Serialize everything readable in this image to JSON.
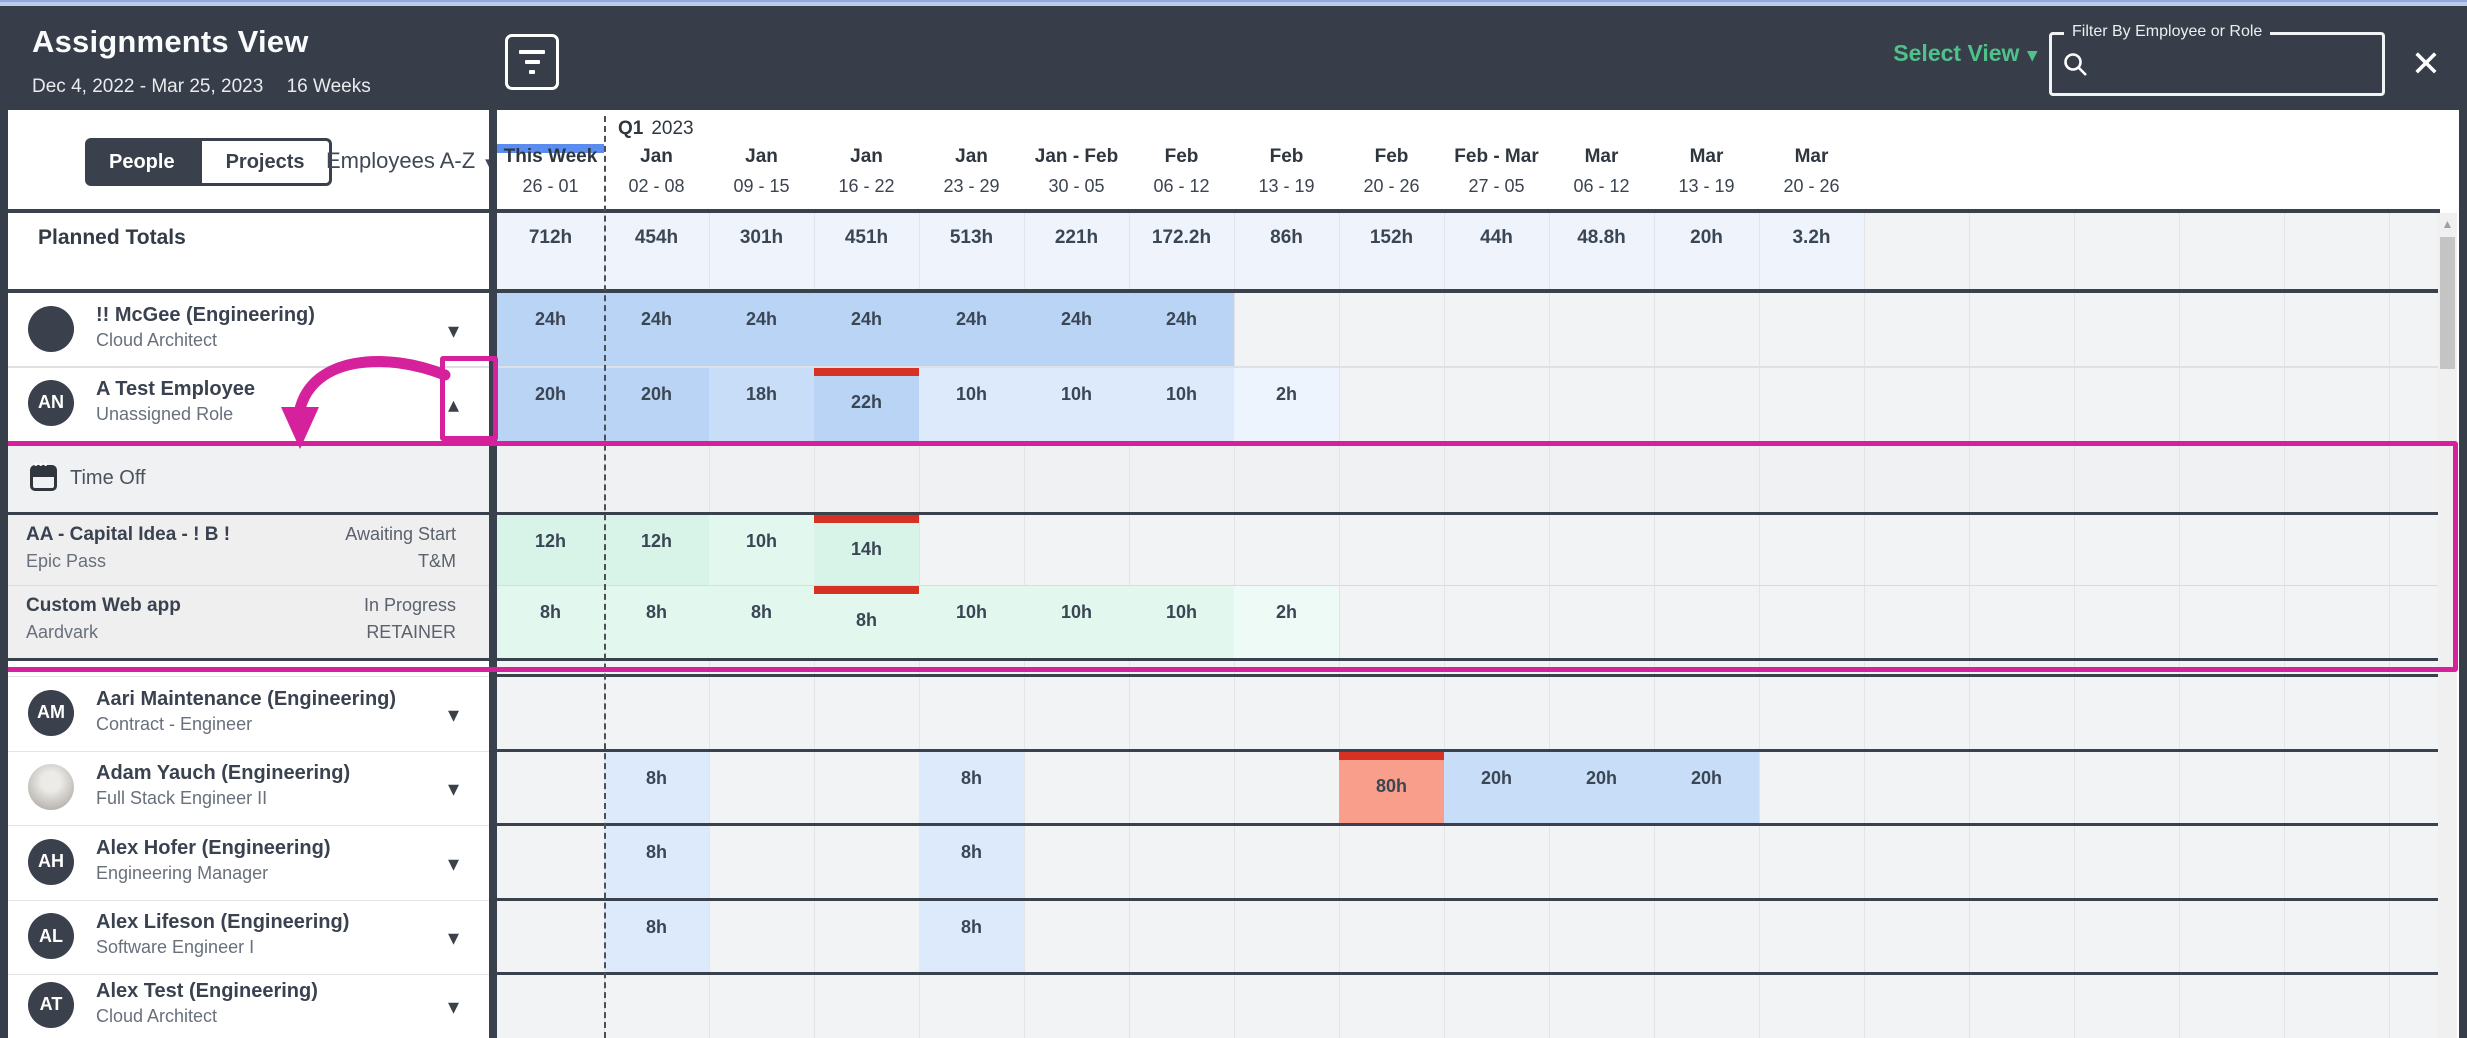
{
  "header": {
    "title": "Assignments View",
    "date_range": "Dec 4, 2022 - Mar 25, 2023",
    "weeks_label": "16 Weeks",
    "select_view_label": "Select View",
    "select_caret": "▾",
    "filter_field_label": "Filter By Employee or Role",
    "filter_value": "",
    "close_glyph": "✕"
  },
  "left_panel": {
    "tabs": [
      {
        "label": "People",
        "active": true
      },
      {
        "label": "Projects",
        "active": false
      }
    ],
    "sort_label": "Employees A-Z",
    "sort_caret": "▾",
    "planned_totals_label": "Planned Totals"
  },
  "timeline": {
    "quarter": {
      "bold": "Q1",
      "year": "2023"
    },
    "columns": [
      {
        "month": "This Week",
        "dates": "26 - 01",
        "current": true
      },
      {
        "month": "Jan",
        "dates": "02 - 08"
      },
      {
        "month": "Jan",
        "dates": "09 - 15"
      },
      {
        "month": "Jan",
        "dates": "16 - 22"
      },
      {
        "month": "Jan",
        "dates": "23 - 29"
      },
      {
        "month": "Jan - Feb",
        "dates": "30 - 05"
      },
      {
        "month": "Feb",
        "dates": "06 - 12"
      },
      {
        "month": "Feb",
        "dates": "13 - 19"
      },
      {
        "month": "Feb",
        "dates": "20 - 26"
      },
      {
        "month": "Feb - Mar",
        "dates": "27 - 05"
      },
      {
        "month": "Mar",
        "dates": "06 - 12"
      },
      {
        "month": "Mar",
        "dates": "13 - 19"
      },
      {
        "month": "Mar",
        "dates": "20 - 26"
      }
    ],
    "planned_totals": [
      "712h",
      "454h",
      "301h",
      "451h",
      "513h",
      "221h",
      "172.2h",
      "86h",
      "152h",
      "44h",
      "48.8h",
      "20h",
      "3.2h"
    ],
    "scroll_up_glyph": "▲"
  },
  "rows": [
    {
      "type": "employee",
      "name": "!! McGee (Engineering)",
      "role": "Cloud Architect",
      "avatar": {
        "kind": "solid",
        "text": ""
      },
      "expanded": false,
      "cells": [
        {
          "col": 0,
          "label": "24h",
          "tone": "blue_strong"
        },
        {
          "col": 1,
          "label": "24h",
          "tone": "blue_strong"
        },
        {
          "col": 2,
          "label": "24h",
          "tone": "blue_strong"
        },
        {
          "col": 3,
          "label": "24h",
          "tone": "blue_strong"
        },
        {
          "col": 4,
          "label": "24h",
          "tone": "blue_strong"
        },
        {
          "col": 5,
          "label": "24h",
          "tone": "blue_strong"
        },
        {
          "col": 6,
          "label": "24h",
          "tone": "blue_strong"
        }
      ]
    },
    {
      "type": "employee",
      "name": "A Test Employee",
      "role": "Unassigned Role",
      "avatar": {
        "kind": "initials",
        "text": "AN"
      },
      "expanded": true,
      "cells": [
        {
          "col": 0,
          "label": "20h",
          "tone": "blue_strong"
        },
        {
          "col": 1,
          "label": "20h",
          "tone": "blue_strong"
        },
        {
          "col": 2,
          "label": "18h",
          "tone": "blue_mid"
        },
        {
          "col": 3,
          "label": "22h",
          "tone": "blue_strong",
          "alert": true
        },
        {
          "col": 4,
          "label": "10h",
          "tone": "blue_soft"
        },
        {
          "col": 5,
          "label": "10h",
          "tone": "blue_soft"
        },
        {
          "col": 6,
          "label": "10h",
          "tone": "blue_soft"
        },
        {
          "col": 7,
          "label": "2h",
          "tone": "blue_faint"
        }
      ]
    },
    {
      "type": "timeoff",
      "label": "Time Off",
      "cells": []
    },
    {
      "type": "project",
      "name": "AA - Capital Idea - ! B !",
      "client": "Epic Pass",
      "status": "Awaiting Start",
      "billing": "T&M",
      "cells": [
        {
          "col": 0,
          "label": "12h",
          "tone": "green_mid"
        },
        {
          "col": 1,
          "label": "12h",
          "tone": "green_mid"
        },
        {
          "col": 2,
          "label": "10h",
          "tone": "green_soft"
        },
        {
          "col": 3,
          "label": "14h",
          "tone": "green_mid",
          "alert": true
        }
      ]
    },
    {
      "type": "project",
      "name": "Custom Web app",
      "client": "Aardvark",
      "status": "In Progress",
      "billing": "RETAINER",
      "cells": [
        {
          "col": 0,
          "label": "8h",
          "tone": "green_soft"
        },
        {
          "col": 1,
          "label": "8h",
          "tone": "green_soft"
        },
        {
          "col": 2,
          "label": "8h",
          "tone": "green_soft"
        },
        {
          "col": 3,
          "label": "8h",
          "tone": "green_soft",
          "alert": true
        },
        {
          "col": 4,
          "label": "10h",
          "tone": "green_soft"
        },
        {
          "col": 5,
          "label": "10h",
          "tone": "green_soft"
        },
        {
          "col": 6,
          "label": "10h",
          "tone": "green_soft"
        },
        {
          "col": 7,
          "label": "2h",
          "tone": "green_faint"
        }
      ]
    },
    {
      "type": "employee",
      "name": "Aari Maintenance (Engineering)",
      "role": "Contract - Engineer",
      "avatar": {
        "kind": "initials",
        "text": "AM"
      },
      "expanded": false,
      "cells": []
    },
    {
      "type": "employee",
      "name": "Adam Yauch (Engineering)",
      "role": "Full Stack Engineer II",
      "avatar": {
        "kind": "photo",
        "text": ""
      },
      "expanded": false,
      "cells": [
        {
          "col": 1,
          "label": "8h",
          "tone": "blue_soft"
        },
        {
          "col": 4,
          "label": "8h",
          "tone": "blue_soft"
        },
        {
          "col": 8,
          "label": "80h",
          "tone": "salmon",
          "alert": true
        },
        {
          "col": 9,
          "label": "20h",
          "tone": "blue_mid"
        },
        {
          "col": 10,
          "label": "20h",
          "tone": "blue_mid"
        },
        {
          "col": 11,
          "label": "20h",
          "tone": "blue_mid"
        }
      ]
    },
    {
      "type": "employee",
      "name": "Alex Hofer (Engineering)",
      "role": "Engineering Manager",
      "avatar": {
        "kind": "initials",
        "text": "AH"
      },
      "expanded": false,
      "cells": [
        {
          "col": 1,
          "label": "8h",
          "tone": "blue_soft"
        },
        {
          "col": 4,
          "label": "8h",
          "tone": "blue_soft"
        }
      ]
    },
    {
      "type": "employee",
      "name": "Alex Lifeson (Engineering)",
      "role": "Software Engineer I",
      "avatar": {
        "kind": "initials",
        "text": "AL"
      },
      "expanded": false,
      "cells": [
        {
          "col": 1,
          "label": "8h",
          "tone": "blue_soft"
        },
        {
          "col": 4,
          "label": "8h",
          "tone": "blue_soft"
        }
      ]
    },
    {
      "type": "employee",
      "name": "Alex Test (Engineering)",
      "role": "Cloud Architect",
      "avatar": {
        "kind": "initials",
        "text": "AT"
      },
      "expanded": false,
      "cells": []
    }
  ],
  "palette": {
    "blue_strong": "#b9d4f4",
    "blue_mid": "#c8ddf7",
    "blue_soft": "#dceafc",
    "blue_faint": "#edf4fd",
    "green_mid": "#d8f4e8",
    "green_soft": "#e2f7ee",
    "green_faint": "#eefaf5",
    "salmon": "#f89e8b",
    "alert_red": "#d63125",
    "annotation_pink": "#d6219c",
    "today_blue": "#5b8df0",
    "header_dark": "#373e49",
    "accent_green": "#4ec28a",
    "totals_band": "#eef3fc",
    "grid_grey": "#f2f3f4",
    "timeoff_grey": "#f0f1f2",
    "label_grey": "#efefef"
  }
}
